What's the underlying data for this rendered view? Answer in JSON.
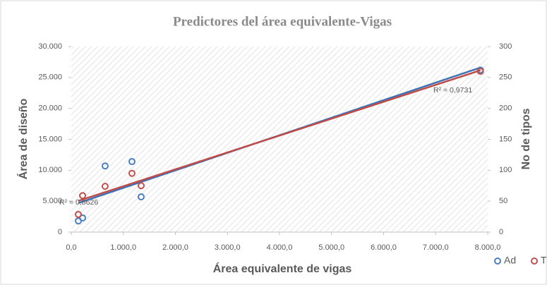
{
  "chart_data": {
    "type": "scatter",
    "title": "Predictores del área equivalente-Vigas",
    "x_label": "Área  equivalente de vigas",
    "y_label": "Área de diseño",
    "y2_label": "No de tipos",
    "xlim": [
      0,
      8000
    ],
    "xticks": [
      {
        "value": 0,
        "label": "0,0"
      },
      {
        "value": 1000,
        "label": "1.000,0"
      },
      {
        "value": 2000,
        "label": "2.000,0"
      },
      {
        "value": 3000,
        "label": "3.000,0"
      },
      {
        "value": 4000,
        "label": "4.000,0"
      },
      {
        "value": 5000,
        "label": "5.000,0"
      },
      {
        "value": 6000,
        "label": "6.000,0"
      },
      {
        "value": 7000,
        "label": "7.000,0"
      },
      {
        "value": 8000,
        "label": "8.000,0"
      }
    ],
    "ylim": [
      0,
      30000
    ],
    "yticks": [
      0,
      {
        "value": 5000,
        "label": "5.000"
      },
      {
        "value": 10000,
        "label": "10.000"
      },
      {
        "value": 15000,
        "label": "15.000"
      },
      {
        "value": 20000,
        "label": "20.000"
      },
      {
        "value": 25000,
        "label": "25.000"
      },
      {
        "value": 30000,
        "label": "30.000"
      }
    ],
    "y2lim": [
      0,
      300
    ],
    "y2ticks": [
      0,
      50,
      100,
      150,
      200,
      250,
      300
    ],
    "series": [
      {
        "name": "Ad",
        "color": "#4a7fc1",
        "line_color": "#3f72b5",
        "x": [
          136,
          217,
          650,
          1166,
          1342,
          7860
        ],
        "values": [
          1800,
          2300,
          10700,
          11400,
          5700,
          26200
        ],
        "r2_label": "R² = 0,8626"
      },
      {
        "name": "T",
        "color": "#c0504d",
        "line_color": "#be4b48",
        "axis": "y2",
        "x": [
          136,
          217,
          650,
          1166,
          1342,
          7860
        ],
        "values": [
          28.5,
          59,
          74,
          95,
          75,
          260
        ],
        "r2_label": "R² = 0,9731"
      }
    ]
  }
}
